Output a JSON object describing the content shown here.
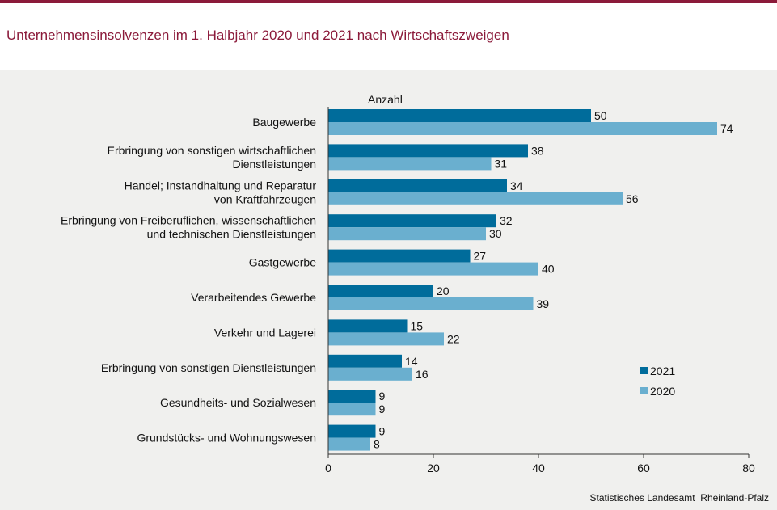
{
  "header": {
    "title": "Unternehmensinsolvenzen im 1. Halbjahr 2020 und 2021 nach Wirtschaftszweigen"
  },
  "footer": {
    "source": "Statistisches Landesamt  Rheinland-Pfalz"
  },
  "colors": {
    "brand": "#8b1a3a",
    "series_2021": "#006c9b",
    "series_2020": "#6aafcf"
  },
  "chart_data": {
    "type": "bar",
    "orientation": "horizontal",
    "title": "Unternehmensinsolvenzen im 1. Halbjahr 2020 und 2021 nach Wirtschaftszweigen",
    "xlabel": "Anzahl",
    "ylabel": "",
    "xlim": [
      0,
      80
    ],
    "xticks": [
      0,
      20,
      40,
      60,
      80
    ],
    "grid": false,
    "legend_position": "right",
    "categories": [
      [
        "Baugewerbe"
      ],
      [
        "Erbringung von sonstigen wirtschaftlichen",
        "Dienstleistungen"
      ],
      [
        "Handel; Instandhaltung und Reparatur",
        "von Kraftfahrzeugen"
      ],
      [
        "Erbringung von Freiberuflichen, wissenschaftlichen",
        "und technischen Dienstleistungen"
      ],
      [
        "Gastgewerbe"
      ],
      [
        "Verarbeitendes Gewerbe"
      ],
      [
        "Verkehr und Lagerei"
      ],
      [
        "Erbringung von sonstigen Dienstleistungen"
      ],
      [
        "Gesundheits- und Sozialwesen"
      ],
      [
        "Grundstücks- und Wohnungswesen"
      ]
    ],
    "series": [
      {
        "name": "2021",
        "color": "#006c9b",
        "values": [
          50,
          38,
          34,
          32,
          27,
          20,
          15,
          14,
          9,
          9
        ]
      },
      {
        "name": "2020",
        "color": "#6aafcf",
        "values": [
          74,
          31,
          56,
          30,
          40,
          39,
          22,
          16,
          9,
          8
        ]
      }
    ]
  }
}
